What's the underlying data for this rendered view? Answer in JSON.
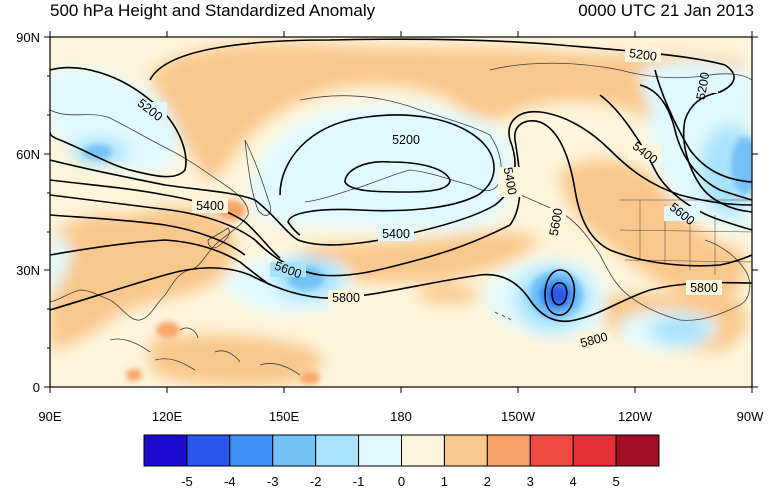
{
  "title": "500 hPa Height and Standardized Anomaly",
  "datetime": "0000 UTC 21 Jan 2013",
  "lat_labels": [
    "90N",
    "60N",
    "30N",
    "0"
  ],
  "lon_labels": [
    "90E",
    "120E",
    "150E",
    "180",
    "150W",
    "120W",
    "90W"
  ],
  "contour_labels": [
    "5200",
    "5200",
    "5200",
    "5200",
    "5400",
    "5400",
    "5400",
    "5400",
    "5600",
    "5600",
    "5600",
    "5800",
    "5800",
    "5800"
  ],
  "colorbar": {
    "labels": [
      "-5",
      "-4",
      "-3",
      "-2",
      "-1",
      "0",
      "1",
      "2",
      "3",
      "4",
      "5"
    ],
    "colors": [
      "#1e0bd0",
      "#2a55ee",
      "#3f8ff4",
      "#73c1f7",
      "#a9e3fb",
      "#e0f9fe",
      "#fdf5dc",
      "#f9c88c",
      "#f7a56b",
      "#ee4a44",
      "#e5303a",
      "#a00f23"
    ]
  },
  "colors": {
    "frame": "#000000",
    "land_outline": "#404040",
    "contour": "#000000"
  }
}
